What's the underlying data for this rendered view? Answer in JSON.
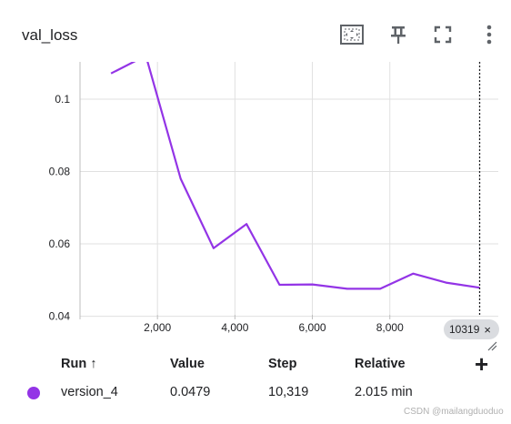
{
  "card": {
    "title": "val_loss",
    "toolbar": {
      "fit_icon": "fit-domain-icon",
      "pin_icon": "pin-icon",
      "fullscreen_icon": "fullscreen-icon",
      "more_icon": "more-vert-icon"
    }
  },
  "chart_data": {
    "type": "line",
    "x": [
      800,
      1700,
      2600,
      3450,
      4300,
      5150,
      6000,
      6900,
      7750,
      8600,
      9450,
      10319
    ],
    "series": [
      {
        "name": "version_4",
        "color": "#9334e6",
        "values": [
          0.1071,
          0.112,
          0.078,
          0.0588,
          0.0655,
          0.0487,
          0.0488,
          0.0476,
          0.0476,
          0.0518,
          0.0493,
          0.0479
        ]
      }
    ],
    "xticks": [
      {
        "value": 0,
        "label": ""
      },
      {
        "value": 2000,
        "label": "2,000"
      },
      {
        "value": 4000,
        "label": "4,000"
      },
      {
        "value": 6000,
        "label": "6,000"
      },
      {
        "value": 8000,
        "label": "8,000"
      }
    ],
    "yticks": [
      {
        "value": 0.04,
        "label": "0.04"
      },
      {
        "value": 0.06,
        "label": "0.06"
      },
      {
        "value": 0.08,
        "label": "0.08"
      },
      {
        "value": 0.1,
        "label": "0.1"
      }
    ],
    "xlim": [
      0,
      10800
    ],
    "ylim": [
      0.0404,
      0.1103
    ],
    "grid": true,
    "hover_step": 10319
  },
  "step_chip": {
    "label": "10319",
    "close": "×"
  },
  "table": {
    "headers": {
      "run": "Run ↑",
      "value": "Value",
      "step": "Step",
      "relative": "Relative"
    },
    "add_column": "+",
    "rows": [
      {
        "color": "#9334e6",
        "run": "version_4",
        "value": "0.0479",
        "step": "10,319",
        "relative": "2.015 min"
      }
    ]
  },
  "watermark": "CSDN @mailangduoduo"
}
